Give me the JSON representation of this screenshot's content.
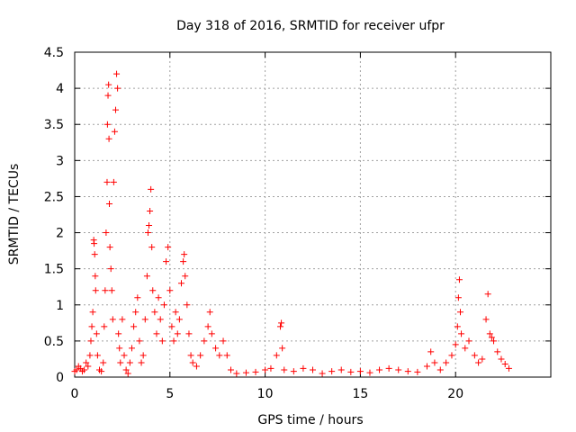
{
  "chart_data": {
    "type": "scatter",
    "title": "Day 318 of 2016, SRMTID for receiver ufpr",
    "xlabel": "GPS time / hours",
    "ylabel": "SRMTID / TECUs",
    "xlim": [
      0,
      25
    ],
    "ylim": [
      0,
      4.5
    ],
    "x_ticks": [
      0,
      5,
      10,
      15,
      20
    ],
    "x_tick_labels": [
      "0",
      "5",
      "10",
      "15",
      "20"
    ],
    "y_ticks": [
      0,
      0.5,
      1,
      1.5,
      2,
      2.5,
      3,
      3.5,
      4,
      4.5
    ],
    "y_tick_labels": [
      "0",
      "0.5",
      "1",
      "1.5",
      "2",
      "2.5",
      "3",
      "3.5",
      "4",
      "4.5"
    ],
    "grid": true,
    "marker": "+",
    "marker_color": "#ff0000",
    "series": [
      {
        "name": "SRMTID",
        "points": [
          [
            0.0,
            0.08
          ],
          [
            0.1,
            0.1
          ],
          [
            0.2,
            0.15
          ],
          [
            0.3,
            0.12
          ],
          [
            0.4,
            0.08
          ],
          [
            0.5,
            0.1
          ],
          [
            0.6,
            0.2
          ],
          [
            0.7,
            0.15
          ],
          [
            0.8,
            0.3
          ],
          [
            0.85,
            0.5
          ],
          [
            0.9,
            0.7
          ],
          [
            0.95,
            0.9
          ],
          [
            1.0,
            1.9
          ],
          [
            1.02,
            1.85
          ],
          [
            1.05,
            1.7
          ],
          [
            1.08,
            1.4
          ],
          [
            1.1,
            1.2
          ],
          [
            1.15,
            0.6
          ],
          [
            1.2,
            0.3
          ],
          [
            1.3,
            0.1
          ],
          [
            1.4,
            0.08
          ],
          [
            1.5,
            0.2
          ],
          [
            1.55,
            0.7
          ],
          [
            1.6,
            1.2
          ],
          [
            1.65,
            2.0
          ],
          [
            1.7,
            2.7
          ],
          [
            1.72,
            3.5
          ],
          [
            1.75,
            3.9
          ],
          [
            1.78,
            4.05
          ],
          [
            1.8,
            3.3
          ],
          [
            1.82,
            2.4
          ],
          [
            1.85,
            1.8
          ],
          [
            1.9,
            1.5
          ],
          [
            1.95,
            1.2
          ],
          [
            2.0,
            0.8
          ],
          [
            2.05,
            2.7
          ],
          [
            2.1,
            3.4
          ],
          [
            2.15,
            3.7
          ],
          [
            2.2,
            4.2
          ],
          [
            2.25,
            4.0
          ],
          [
            2.3,
            0.6
          ],
          [
            2.35,
            0.4
          ],
          [
            2.4,
            0.2
          ],
          [
            2.5,
            0.8
          ],
          [
            2.6,
            0.3
          ],
          [
            2.7,
            0.1
          ],
          [
            2.8,
            0.05
          ],
          [
            2.9,
            0.2
          ],
          [
            3.0,
            0.4
          ],
          [
            3.1,
            0.7
          ],
          [
            3.2,
            0.9
          ],
          [
            3.3,
            1.1
          ],
          [
            3.4,
            0.5
          ],
          [
            3.5,
            0.2
          ],
          [
            3.6,
            0.3
          ],
          [
            3.7,
            0.8
          ],
          [
            3.8,
            1.4
          ],
          [
            3.85,
            2.0
          ],
          [
            3.9,
            2.1
          ],
          [
            3.95,
            2.3
          ],
          [
            4.0,
            2.6
          ],
          [
            4.05,
            1.8
          ],
          [
            4.1,
            1.2
          ],
          [
            4.2,
            0.9
          ],
          [
            4.3,
            0.6
          ],
          [
            4.4,
            1.1
          ],
          [
            4.5,
            0.8
          ],
          [
            4.6,
            0.5
          ],
          [
            4.7,
            1.0
          ],
          [
            4.8,
            1.6
          ],
          [
            4.9,
            1.8
          ],
          [
            5.0,
            1.2
          ],
          [
            5.1,
            0.7
          ],
          [
            5.2,
            0.5
          ],
          [
            5.3,
            0.9
          ],
          [
            5.4,
            0.6
          ],
          [
            5.5,
            0.8
          ],
          [
            5.6,
            1.3
          ],
          [
            5.7,
            1.6
          ],
          [
            5.75,
            1.7
          ],
          [
            5.8,
            1.4
          ],
          [
            5.9,
            1.0
          ],
          [
            6.0,
            0.6
          ],
          [
            6.1,
            0.3
          ],
          [
            6.2,
            0.2
          ],
          [
            6.4,
            0.15
          ],
          [
            6.6,
            0.3
          ],
          [
            6.8,
            0.5
          ],
          [
            7.0,
            0.7
          ],
          [
            7.1,
            0.9
          ],
          [
            7.2,
            0.6
          ],
          [
            7.4,
            0.4
          ],
          [
            7.6,
            0.3
          ],
          [
            7.8,
            0.5
          ],
          [
            8.0,
            0.3
          ],
          [
            8.2,
            0.1
          ],
          [
            8.5,
            0.05
          ],
          [
            9.0,
            0.06
          ],
          [
            9.5,
            0.07
          ],
          [
            10.0,
            0.1
          ],
          [
            10.3,
            0.12
          ],
          [
            10.6,
            0.3
          ],
          [
            10.8,
            0.7
          ],
          [
            10.85,
            0.75
          ],
          [
            10.9,
            0.4
          ],
          [
            11.0,
            0.1
          ],
          [
            11.5,
            0.08
          ],
          [
            12.0,
            0.12
          ],
          [
            12.5,
            0.1
          ],
          [
            13.0,
            0.05
          ],
          [
            13.5,
            0.08
          ],
          [
            14.0,
            0.1
          ],
          [
            14.5,
            0.07
          ],
          [
            15.0,
            0.08
          ],
          [
            15.5,
            0.06
          ],
          [
            16.0,
            0.1
          ],
          [
            16.5,
            0.12
          ],
          [
            17.0,
            0.1
          ],
          [
            17.5,
            0.08
          ],
          [
            18.0,
            0.07
          ],
          [
            18.5,
            0.15
          ],
          [
            18.7,
            0.35
          ],
          [
            18.9,
            0.2
          ],
          [
            19.2,
            0.1
          ],
          [
            19.5,
            0.2
          ],
          [
            19.8,
            0.3
          ],
          [
            20.0,
            0.45
          ],
          [
            20.1,
            0.7
          ],
          [
            20.15,
            1.1
          ],
          [
            20.2,
            1.35
          ],
          [
            20.25,
            0.9
          ],
          [
            20.3,
            0.6
          ],
          [
            20.5,
            0.4
          ],
          [
            20.7,
            0.5
          ],
          [
            21.0,
            0.3
          ],
          [
            21.2,
            0.2
          ],
          [
            21.4,
            0.25
          ],
          [
            21.6,
            0.8
          ],
          [
            21.7,
            1.15
          ],
          [
            21.8,
            0.6
          ],
          [
            21.9,
            0.55
          ],
          [
            22.0,
            0.5
          ],
          [
            22.2,
            0.35
          ],
          [
            22.4,
            0.25
          ],
          [
            22.6,
            0.18
          ],
          [
            22.8,
            0.12
          ]
        ]
      }
    ]
  }
}
